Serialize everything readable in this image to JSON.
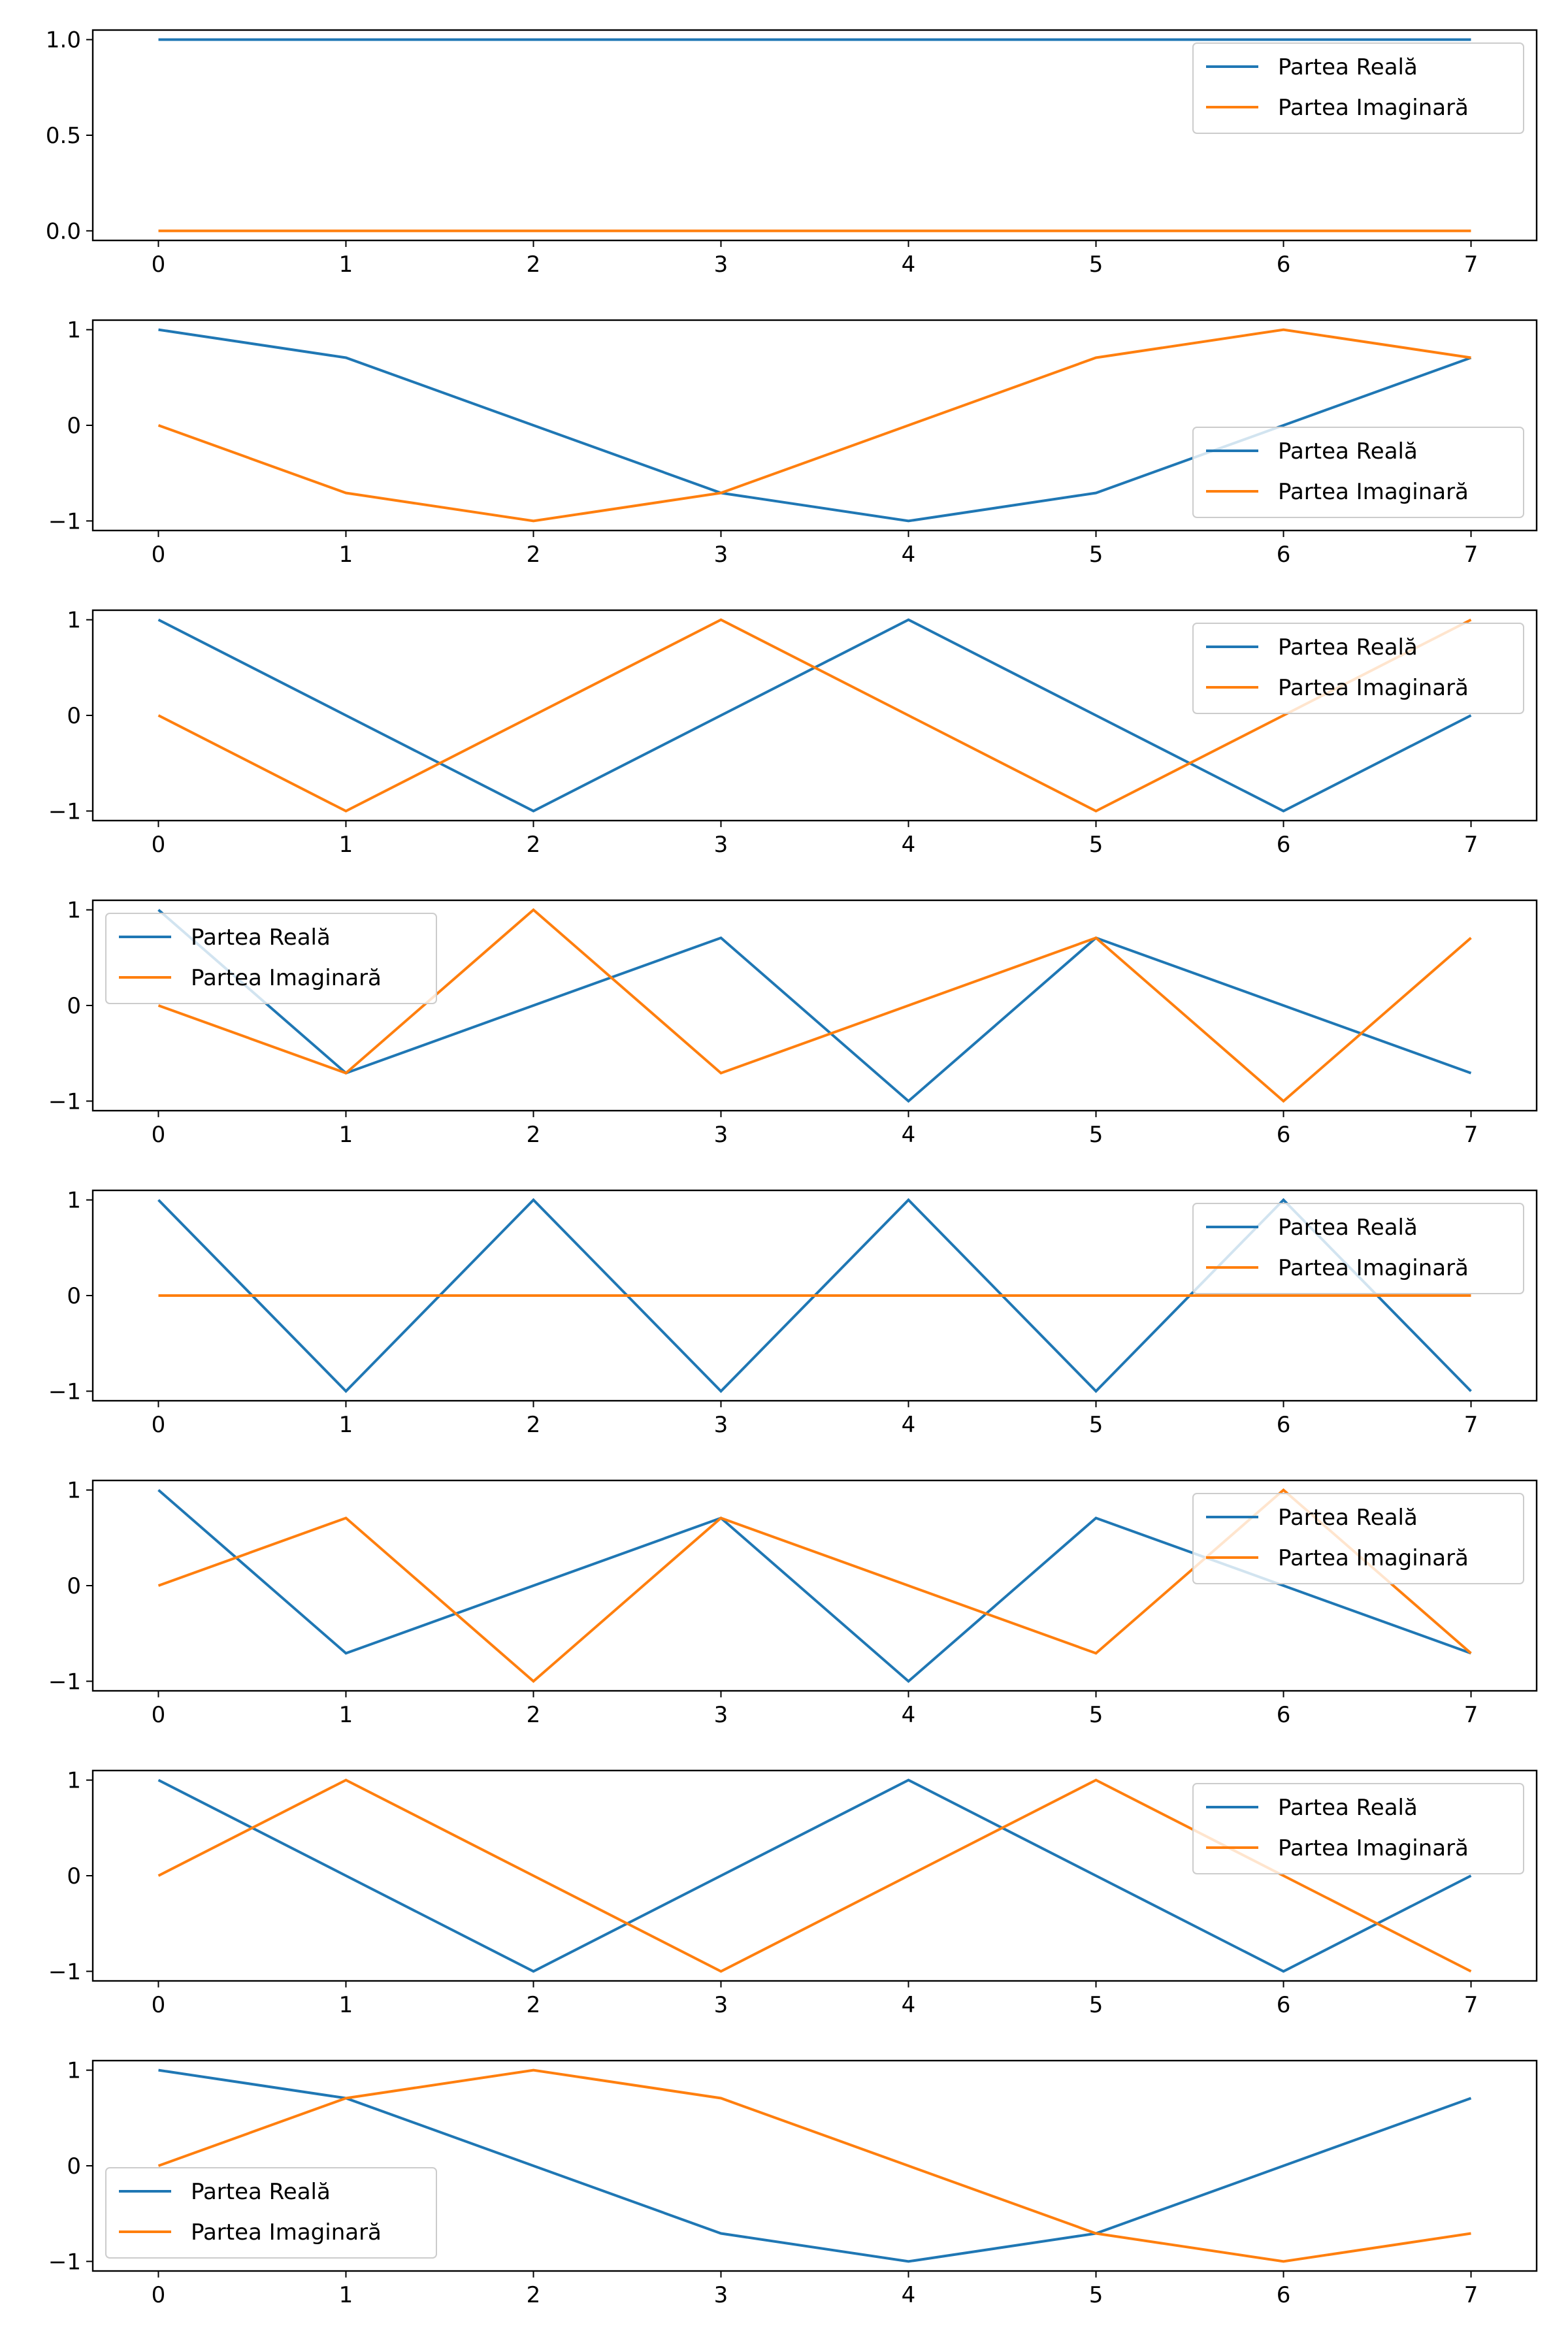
{
  "figure": {
    "background": "#ffffff",
    "real_color": "#1f77b4",
    "imag_color": "#ff7f0e"
  },
  "chart_data": [
    {
      "type": "line",
      "x": [
        0,
        1,
        2,
        3,
        4,
        5,
        6,
        7
      ],
      "xticks": [
        "0",
        "1",
        "2",
        "3",
        "4",
        "5",
        "6",
        "7"
      ],
      "yticks": [
        "0.0",
        "0.5",
        "1.0"
      ],
      "ylim": [
        -0.05,
        1.05
      ],
      "legend_position": "upper-right",
      "series": [
        {
          "name": "Partea Reală",
          "values": [
            1,
            1,
            1,
            1,
            1,
            1,
            1,
            1
          ]
        },
        {
          "name": "Partea Imaginară",
          "values": [
            0,
            0,
            0,
            0,
            0,
            0,
            0,
            0
          ]
        }
      ]
    },
    {
      "type": "line",
      "x": [
        0,
        1,
        2,
        3,
        4,
        5,
        6,
        7
      ],
      "xticks": [
        "0",
        "1",
        "2",
        "3",
        "4",
        "5",
        "6",
        "7"
      ],
      "yticks": [
        "−1",
        "0",
        "1"
      ],
      "ylim": [
        -1.1,
        1.1
      ],
      "legend_position": "lower-right",
      "series": [
        {
          "name": "Partea Reală",
          "values": [
            1,
            0.707,
            0,
            -0.707,
            -1,
            -0.707,
            0,
            0.707
          ]
        },
        {
          "name": "Partea Imaginară",
          "values": [
            0,
            -0.707,
            -1,
            -0.707,
            0,
            0.707,
            1,
            0.707
          ]
        }
      ]
    },
    {
      "type": "line",
      "x": [
        0,
        1,
        2,
        3,
        4,
        5,
        6,
        7
      ],
      "xticks": [
        "0",
        "1",
        "2",
        "3",
        "4",
        "5",
        "6",
        "7"
      ],
      "yticks": [
        "−1",
        "0",
        "1"
      ],
      "ylim": [
        -1.1,
        1.1
      ],
      "legend_position": "upper-right",
      "series": [
        {
          "name": "Partea Reală",
          "values": [
            1,
            0,
            -1,
            0,
            1,
            0,
            -1,
            0
          ]
        },
        {
          "name": "Partea Imaginară",
          "values": [
            0,
            -1,
            0,
            1,
            0,
            -1,
            0,
            1
          ]
        }
      ]
    },
    {
      "type": "line",
      "x": [
        0,
        1,
        2,
        3,
        4,
        5,
        6,
        7
      ],
      "xticks": [
        "0",
        "1",
        "2",
        "3",
        "4",
        "5",
        "6",
        "7"
      ],
      "yticks": [
        "−1",
        "0",
        "1"
      ],
      "ylim": [
        -1.1,
        1.1
      ],
      "legend_position": "upper-left",
      "series": [
        {
          "name": "Partea Reală",
          "values": [
            1,
            -0.707,
            0,
            0.707,
            -1,
            0.707,
            0,
            -0.707
          ]
        },
        {
          "name": "Partea Imaginară",
          "values": [
            0,
            -0.707,
            1,
            -0.707,
            0,
            0.707,
            -1,
            0.707
          ]
        }
      ]
    },
    {
      "type": "line",
      "x": [
        0,
        1,
        2,
        3,
        4,
        5,
        6,
        7
      ],
      "xticks": [
        "0",
        "1",
        "2",
        "3",
        "4",
        "5",
        "6",
        "7"
      ],
      "yticks": [
        "−1",
        "0",
        "1"
      ],
      "ylim": [
        -1.1,
        1.1
      ],
      "legend_position": "upper-right",
      "series": [
        {
          "name": "Partea Reală",
          "values": [
            1,
            -1,
            1,
            -1,
            1,
            -1,
            1,
            -1
          ]
        },
        {
          "name": "Partea Imaginară",
          "values": [
            0,
            0,
            0,
            0,
            0,
            0,
            0,
            0
          ]
        }
      ]
    },
    {
      "type": "line",
      "x": [
        0,
        1,
        2,
        3,
        4,
        5,
        6,
        7
      ],
      "xticks": [
        "0",
        "1",
        "2",
        "3",
        "4",
        "5",
        "6",
        "7"
      ],
      "yticks": [
        "−1",
        "0",
        "1"
      ],
      "ylim": [
        -1.1,
        1.1
      ],
      "legend_position": "upper-right",
      "series": [
        {
          "name": "Partea Reală",
          "values": [
            1,
            -0.707,
            0,
            0.707,
            -1,
            0.707,
            0,
            -0.707
          ]
        },
        {
          "name": "Partea Imaginară",
          "values": [
            0,
            0.707,
            -1,
            0.707,
            0,
            -0.707,
            1,
            -0.707
          ]
        }
      ]
    },
    {
      "type": "line",
      "x": [
        0,
        1,
        2,
        3,
        4,
        5,
        6,
        7
      ],
      "xticks": [
        "0",
        "1",
        "2",
        "3",
        "4",
        "5",
        "6",
        "7"
      ],
      "yticks": [
        "−1",
        "0",
        "1"
      ],
      "ylim": [
        -1.1,
        1.1
      ],
      "legend_position": "upper-right",
      "series": [
        {
          "name": "Partea Reală",
          "values": [
            1,
            0,
            -1,
            0,
            1,
            0,
            -1,
            0
          ]
        },
        {
          "name": "Partea Imaginară",
          "values": [
            0,
            1,
            0,
            -1,
            0,
            1,
            0,
            -1
          ]
        }
      ]
    },
    {
      "type": "line",
      "x": [
        0,
        1,
        2,
        3,
        4,
        5,
        6,
        7
      ],
      "xticks": [
        "0",
        "1",
        "2",
        "3",
        "4",
        "5",
        "6",
        "7"
      ],
      "yticks": [
        "−1",
        "0",
        "1"
      ],
      "ylim": [
        -1.1,
        1.1
      ],
      "legend_position": "lower-left",
      "series": [
        {
          "name": "Partea Reală",
          "values": [
            1,
            0.707,
            0,
            -0.707,
            -1,
            -0.707,
            0,
            0.707
          ]
        },
        {
          "name": "Partea Imaginară",
          "values": [
            0,
            0.707,
            1,
            0.707,
            0,
            -0.707,
            -1,
            -0.707
          ]
        }
      ]
    }
  ]
}
